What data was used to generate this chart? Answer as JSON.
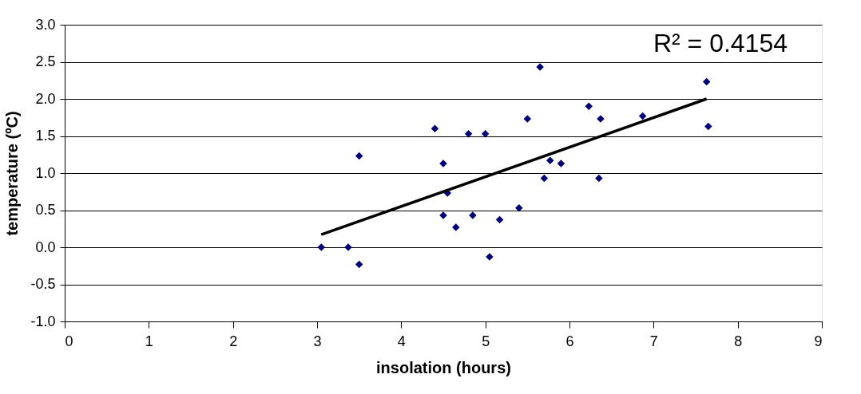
{
  "chart_data": {
    "type": "scatter",
    "xlabel": "insolation (hours)",
    "ylabel": "temperature (ºC)",
    "xlim": [
      0,
      9
    ],
    "xticks": [
      0,
      1,
      2,
      3,
      4,
      5,
      6,
      7,
      8,
      9
    ],
    "ylim": [
      -1,
      3
    ],
    "yticks": [
      {
        "value": -1,
        "label": "-1.0"
      },
      {
        "value": -0.5,
        "label": "-0.5"
      },
      {
        "value": 0,
        "label": "0.0"
      },
      {
        "value": 0.5,
        "label": "0.5"
      },
      {
        "value": 1,
        "label": "1.0"
      },
      {
        "value": 1.5,
        "label": "1.5"
      },
      {
        "value": 2,
        "label": "2.0"
      },
      {
        "value": 2.5,
        "label": "2.5"
      },
      {
        "value": 3,
        "label": "3.0"
      }
    ],
    "grid": "y",
    "marker": "diamond",
    "annotations": [
      "R² = 0.4154"
    ],
    "series": [
      {
        "color": "#000080",
        "x": [
          3.05,
          3.37,
          3.5,
          3.5,
          4.4,
          4.5,
          4.5,
          4.55,
          4.65,
          4.8,
          4.85,
          5.0,
          5.05,
          5.17,
          5.4,
          5.5,
          5.65,
          5.7,
          5.77,
          5.9,
          6.23,
          6.35,
          6.37,
          6.87,
          7.63,
          7.65
        ],
        "values": [
          0.0,
          0.0,
          -0.23,
          1.23,
          1.6,
          1.13,
          0.43,
          0.73,
          0.27,
          1.53,
          0.43,
          1.53,
          -0.13,
          0.37,
          0.53,
          1.73,
          2.43,
          0.93,
          1.17,
          1.13,
          1.9,
          0.93,
          1.73,
          1.77,
          2.23,
          1.63
        ]
      },
      {
        "type": "line",
        "marker": "none",
        "color": "#000000",
        "x": [
          3.05,
          7.63
        ],
        "values": [
          0.17,
          2.0
        ]
      }
    ]
  }
}
